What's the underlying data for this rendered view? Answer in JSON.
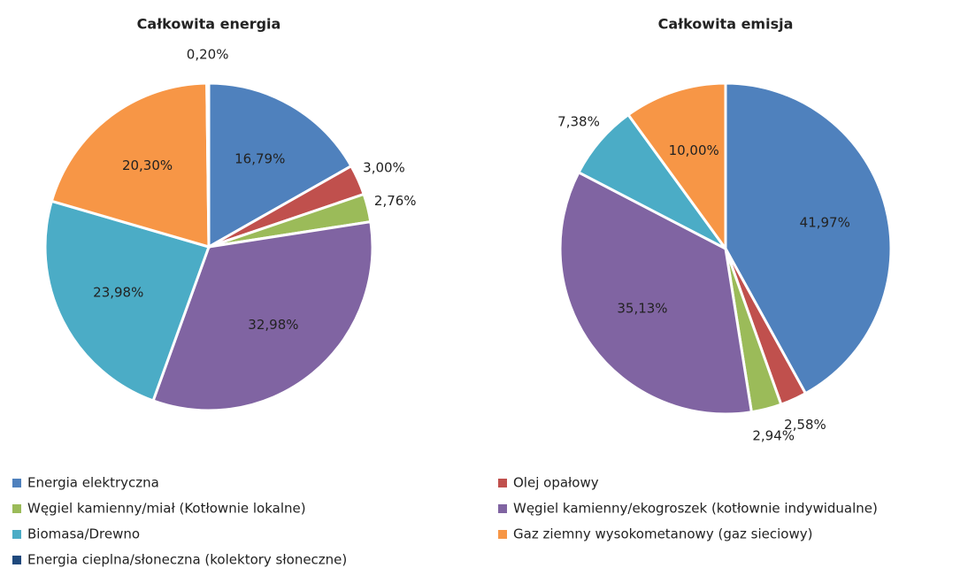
{
  "chart_data": [
    {
      "type": "pie",
      "title": "Całkowita energia",
      "categories": [
        "Energia elektryczna",
        "Olej opałowy",
        "Węgiel kamienny/miał (Kotłownie lokalne)",
        "Węgiel kamienny/ekogroszek (kotłownie indywidualne)",
        "Biomasa/Drewno",
        "Gaz ziemny wysokometanowy (gaz sieciowy)",
        "Energia cieplna/słoneczna (kolektory słoneczne)"
      ],
      "values": [
        16.79,
        3.0,
        2.76,
        32.98,
        23.98,
        20.3,
        0.2
      ],
      "value_labels": [
        "16,79%",
        "3,00%",
        "2,76%",
        "32,98%",
        "23,98%",
        "20,30%",
        "0,20%"
      ],
      "colors": [
        "#4f81bd",
        "#c0504d",
        "#9bbb59",
        "#8064a2",
        "#4bacc6",
        "#f79646",
        "#1f497d"
      ]
    },
    {
      "type": "pie",
      "title": "Całkowita emisja",
      "categories": [
        "Energia elektryczna",
        "Olej opałowy",
        "Węgiel kamienny/miał (Kotłownie lokalne)",
        "Węgiel kamienny/ekogroszek (kotłownie indywidualne)",
        "Biomasa/Drewno",
        "Gaz ziemny wysokometanowy (gaz sieciowy)"
      ],
      "values": [
        41.97,
        2.58,
        2.94,
        35.13,
        7.38,
        10.0
      ],
      "value_labels": [
        "41,97%",
        "2,58%",
        "2,94%",
        "35,13%",
        "7,38%",
        "10,00%"
      ],
      "colors": [
        "#4f81bd",
        "#c0504d",
        "#9bbb59",
        "#8064a2",
        "#4bacc6",
        "#f79646"
      ]
    }
  ]
}
